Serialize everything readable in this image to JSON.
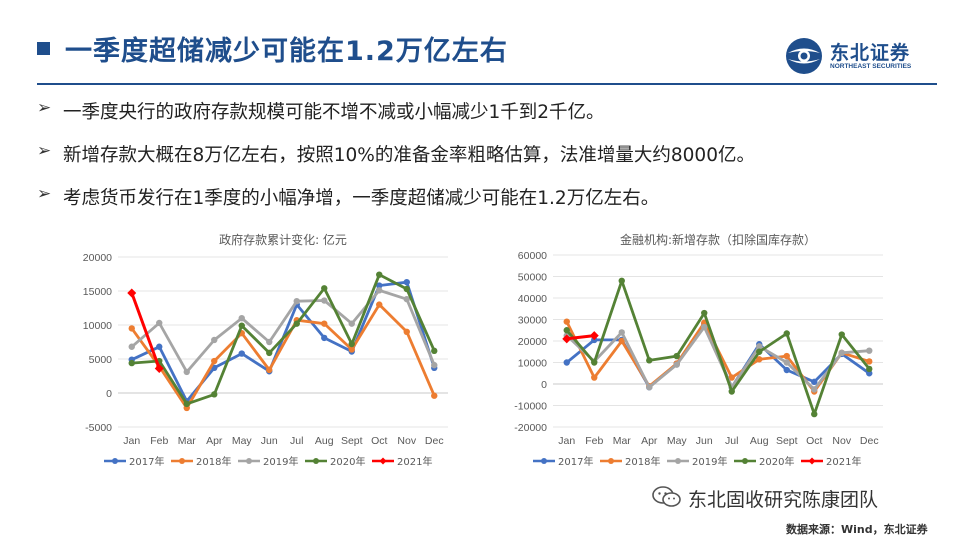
{
  "header": {
    "title": "一季度超储减少可能在1.2万亿左右",
    "logo_cn": "东北证券",
    "logo_en": "NORTHEAST SECURITIES",
    "accent_color": "#1f4e8c"
  },
  "bullets": [
    {
      "mark": "➢",
      "text": "一季度央行的政府存款规模可能不增不减或小幅减少1千到2千亿。"
    },
    {
      "mark": "➢",
      "text": "新增存款大概在8万亿左右，按照10%的准备金率粗略估算，法准增量大约8000亿。"
    },
    {
      "mark": "➢",
      "text": "考虑货币发行在1季度的小幅净增，一季度超储减少可能在1.2万亿左右。"
    }
  ],
  "chart_data": [
    {
      "type": "line",
      "title": "政府存款累计变化: 亿元",
      "xlabel": "",
      "ylabel": "",
      "categories": [
        "Jan",
        "Feb",
        "Mar",
        "Apr",
        "May",
        "Jun",
        "Jul",
        "Aug",
        "Sept",
        "Oct",
        "Nov",
        "Dec"
      ],
      "ylim": [
        -5000,
        20000
      ],
      "yticks": [
        -5000,
        0,
        5000,
        10000,
        15000,
        20000
      ],
      "grid": true,
      "legend_position": "bottom",
      "series": [
        {
          "name": "2017年",
          "color": "#4472c4",
          "values": [
            4900,
            6800,
            -1200,
            3700,
            5800,
            3200,
            13000,
            8100,
            6100,
            15800,
            16300,
            3700
          ]
        },
        {
          "name": "2018年",
          "color": "#ed7d31",
          "values": [
            9500,
            3900,
            -2200,
            4700,
            8800,
            3400,
            10700,
            10200,
            6400,
            13000,
            9000,
            -400
          ]
        },
        {
          "name": "2019年",
          "color": "#a5a5a5",
          "values": [
            6800,
            10300,
            3100,
            7800,
            11000,
            7500,
            13500,
            13600,
            10200,
            15100,
            13800,
            4100
          ]
        },
        {
          "name": "2020年",
          "color": "#548235",
          "values": [
            4400,
            4700,
            -1600,
            -200,
            9900,
            5900,
            10200,
            15400,
            7200,
            17400,
            15300,
            6200
          ]
        },
        {
          "name": "2021年",
          "color": "#ff0000",
          "values": [
            14700,
            3600,
            null,
            null,
            null,
            null,
            null,
            null,
            null,
            null,
            null,
            null
          ]
        }
      ]
    },
    {
      "type": "line",
      "title": "金融机构:新增存款（扣除国库存款）",
      "xlabel": "",
      "ylabel": "",
      "categories": [
        "Jan",
        "Feb",
        "Mar",
        "Apr",
        "May",
        "Jun",
        "Jul",
        "Aug",
        "Sept",
        "Oct",
        "Nov",
        "Dec"
      ],
      "ylim": [
        -20000,
        60000
      ],
      "yticks": [
        -20000,
        -10000,
        0,
        10000,
        20000,
        30000,
        40000,
        50000,
        60000
      ],
      "grid": true,
      "legend_position": "bottom",
      "series": [
        {
          "name": "2017年",
          "color": "#4472c4",
          "values": [
            10000,
            20500,
            20500,
            -1500,
            9500,
            28000,
            -1500,
            18500,
            6500,
            1000,
            14000,
            5000
          ]
        },
        {
          "name": "2018年",
          "color": "#ed7d31",
          "values": [
            29000,
            3000,
            20000,
            -1000,
            9500,
            28500,
            3000,
            11500,
            13000,
            -3500,
            14500,
            10500
          ]
        },
        {
          "name": "2019年",
          "color": "#a5a5a5",
          "values": [
            22500,
            10500,
            24000,
            -1500,
            9000,
            26500,
            -1500,
            17500,
            10000,
            -2500,
            14500,
            15500
          ]
        },
        {
          "name": "2020年",
          "color": "#548235",
          "values": [
            25000,
            10000,
            48000,
            11000,
            13000,
            33000,
            -3500,
            15000,
            23500,
            -14000,
            23000,
            7000
          ]
        },
        {
          "name": "2021年",
          "color": "#ff0000",
          "values": [
            21000,
            22500,
            null,
            null,
            null,
            null,
            null,
            null,
            null,
            null,
            null,
            null
          ]
        }
      ]
    }
  ],
  "watermark": {
    "text": "东北固收研究陈康团队",
    "icon": "wechat-icon"
  },
  "source": "数据来源：Wind，东北证券"
}
